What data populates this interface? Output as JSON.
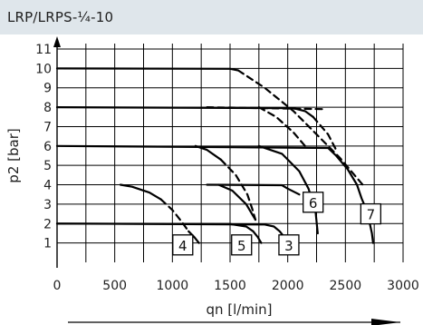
{
  "header": {
    "title": "LRP/LRPS-¼-10"
  },
  "colors": {
    "header_bg": "#dfe6eb",
    "grid": "#000000",
    "curve": "#000000"
  },
  "chart_data": {
    "type": "line",
    "xlabel": "qn [l/min]",
    "ylabel": "p2 [bar]",
    "xlim": [
      0,
      3000
    ],
    "ylim": [
      0,
      11
    ],
    "xticks": [
      0,
      500,
      1000,
      1500,
      2000,
      2500,
      3000
    ],
    "yticks": [
      1,
      2,
      3,
      4,
      5,
      6,
      7,
      8,
      9,
      10,
      11
    ],
    "grid": true,
    "curves": [
      {
        "name": "3",
        "solid": [
          [
            0,
            2.0
          ],
          [
            1800,
            1.95
          ],
          [
            1880,
            1.85
          ],
          [
            1930,
            1.6
          ],
          [
            1970,
            1.3
          ],
          [
            1995,
            1.0
          ]
        ],
        "dashed": [],
        "label_point": [
          2010,
          0.9
        ]
      },
      {
        "name": "4",
        "solid": [
          [
            550,
            4.0
          ],
          [
            650,
            3.9
          ],
          [
            800,
            3.6
          ],
          [
            900,
            3.25
          ]
        ],
        "dashed": [
          [
            900,
            3.25
          ],
          [
            1000,
            2.7
          ],
          [
            1080,
            2.1
          ],
          [
            1140,
            1.6
          ]
        ],
        "tail": [
          [
            1140,
            1.6
          ],
          [
            1190,
            1.3
          ],
          [
            1230,
            1.0
          ]
        ],
        "label_point": [
          1090,
          0.9
        ]
      },
      {
        "name": "5",
        "solid": [
          [
            1200,
            6.0
          ],
          [
            1300,
            5.8
          ],
          [
            1420,
            5.3
          ]
        ],
        "dashed": [
          [
            1420,
            5.3
          ],
          [
            1550,
            4.5
          ],
          [
            1650,
            3.5
          ],
          [
            1690,
            2.8
          ],
          [
            1720,
            2.2
          ]
        ],
        "tail": [
          [
            0,
            2.0
          ],
          [
            1500,
            1.98
          ],
          [
            1640,
            1.85
          ],
          [
            1700,
            1.6
          ],
          [
            1740,
            1.3
          ],
          [
            1770,
            1.0
          ]
        ],
        "extra_solid": [
          [
            1400,
            4.0
          ],
          [
            1520,
            3.7
          ],
          [
            1640,
            3.0
          ],
          [
            1720,
            2.2
          ]
        ],
        "label_point": [
          1600,
          0.9
        ]
      },
      {
        "name": "6",
        "solid": [
          [
            1300,
            4.0
          ],
          [
            1950,
            3.98
          ],
          [
            2000,
            3.8
          ],
          [
            2100,
            3.5
          ]
        ],
        "dashed": [
          [
            1750,
            8.0
          ],
          [
            1900,
            7.5
          ],
          [
            2050,
            6.7
          ],
          [
            2150,
            6.0
          ]
        ],
        "extra_solid": [
          [
            1750,
            6.0
          ],
          [
            1950,
            5.6
          ],
          [
            2100,
            4.7
          ],
          [
            2180,
            3.8
          ],
          [
            2240,
            2.7
          ],
          [
            2260,
            1.5
          ]
        ],
        "label_point": [
          2220,
          3.1
        ]
      },
      {
        "name": "7",
        "solid": [
          [
            0,
            6.0
          ],
          [
            2350,
            5.9
          ],
          [
            2420,
            5.5
          ],
          [
            2520,
            4.8
          ],
          [
            2600,
            4.0
          ],
          [
            2640,
            3.3
          ],
          [
            2690,
            2.6
          ],
          [
            2730,
            1.5
          ],
          [
            2740,
            1.0
          ]
        ],
        "dashed": [
          [
            1300,
            8.0
          ],
          [
            2300,
            7.9
          ]
        ],
        "label_point": [
          2720,
          2.5
        ]
      }
    ],
    "lines": [
      {
        "solid": [
          [
            0,
            10.0
          ],
          [
            1500,
            9.98
          ],
          [
            1570,
            9.9
          ]
        ],
        "dashed": [
          [
            1570,
            9.9
          ],
          [
            1800,
            9.0
          ],
          [
            2050,
            7.8
          ],
          [
            2250,
            6.6
          ],
          [
            2450,
            5.4
          ],
          [
            2650,
            4.0
          ]
        ]
      },
      {
        "solid": [
          [
            0,
            8.0
          ],
          [
            2050,
            7.95
          ],
          [
            2150,
            7.8
          ],
          [
            2220,
            7.5
          ]
        ],
        "dashed": [
          [
            2220,
            7.5
          ],
          [
            2350,
            6.6
          ],
          [
            2420,
            5.8
          ]
        ]
      }
    ],
    "labels": [
      "3",
      "4",
      "5",
      "6",
      "7"
    ]
  }
}
